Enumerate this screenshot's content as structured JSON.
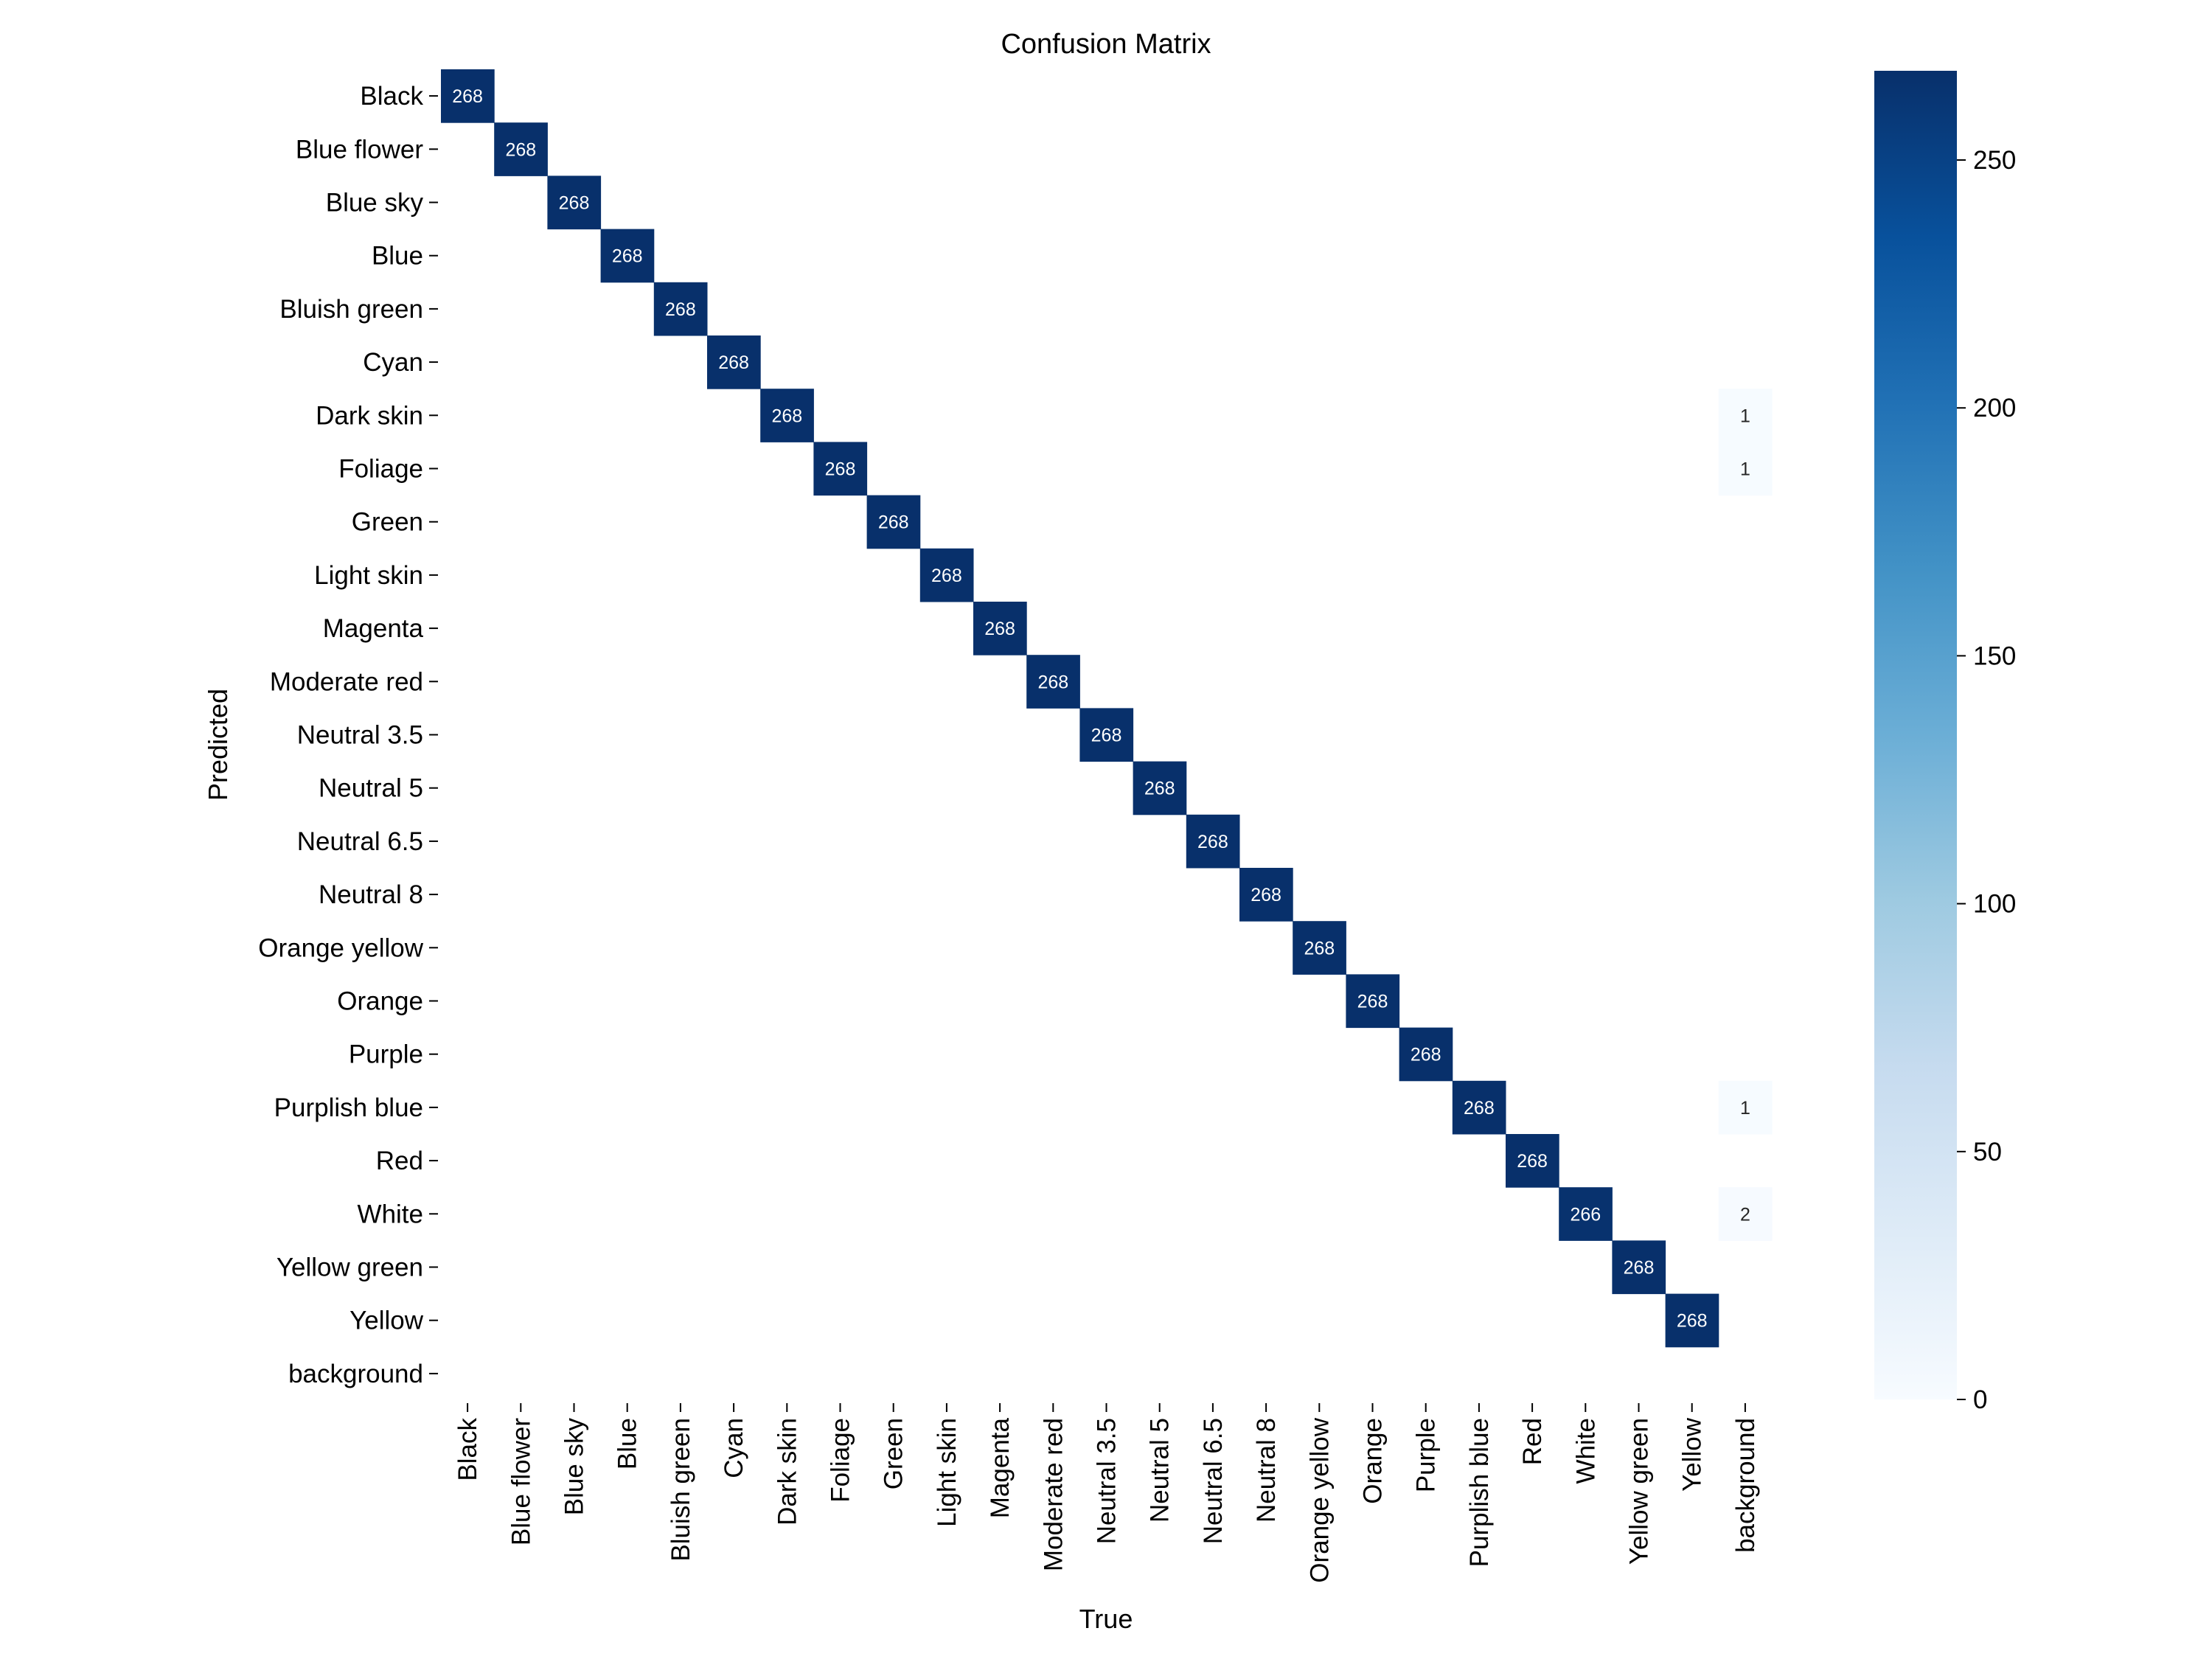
{
  "chart_data": {
    "type": "heatmap",
    "title": "Confusion Matrix",
    "xlabel": "True",
    "ylabel": "Predicted",
    "categories": [
      "Black",
      "Blue flower",
      "Blue sky",
      "Blue",
      "Bluish green",
      "Cyan",
      "Dark skin",
      "Foliage",
      "Green",
      "Light skin",
      "Magenta",
      "Moderate red",
      "Neutral 3.5",
      "Neutral 5",
      "Neutral 6.5",
      "Neutral 8",
      "Orange yellow",
      "Orange",
      "Purple",
      "Purplish blue",
      "Red",
      "White",
      "Yellow green",
      "Yellow",
      "background"
    ],
    "cells": [
      {
        "row": 0,
        "col": 0,
        "value": 268
      },
      {
        "row": 1,
        "col": 1,
        "value": 268
      },
      {
        "row": 2,
        "col": 2,
        "value": 268
      },
      {
        "row": 3,
        "col": 3,
        "value": 268
      },
      {
        "row": 4,
        "col": 4,
        "value": 268
      },
      {
        "row": 5,
        "col": 5,
        "value": 268
      },
      {
        "row": 6,
        "col": 6,
        "value": 268
      },
      {
        "row": 6,
        "col": 24,
        "value": 1
      },
      {
        "row": 7,
        "col": 7,
        "value": 268
      },
      {
        "row": 7,
        "col": 24,
        "value": 1
      },
      {
        "row": 8,
        "col": 8,
        "value": 268
      },
      {
        "row": 9,
        "col": 9,
        "value": 268
      },
      {
        "row": 10,
        "col": 10,
        "value": 268
      },
      {
        "row": 11,
        "col": 11,
        "value": 268
      },
      {
        "row": 12,
        "col": 12,
        "value": 268
      },
      {
        "row": 13,
        "col": 13,
        "value": 268
      },
      {
        "row": 14,
        "col": 14,
        "value": 268
      },
      {
        "row": 15,
        "col": 15,
        "value": 268
      },
      {
        "row": 16,
        "col": 16,
        "value": 268
      },
      {
        "row": 17,
        "col": 17,
        "value": 268
      },
      {
        "row": 18,
        "col": 18,
        "value": 268
      },
      {
        "row": 19,
        "col": 19,
        "value": 268
      },
      {
        "row": 19,
        "col": 24,
        "value": 1
      },
      {
        "row": 20,
        "col": 20,
        "value": 268
      },
      {
        "row": 21,
        "col": 21,
        "value": 266
      },
      {
        "row": 21,
        "col": 24,
        "value": 2
      },
      {
        "row": 22,
        "col": 22,
        "value": 268
      },
      {
        "row": 23,
        "col": 23,
        "value": 268
      }
    ],
    "zero_cells_hidden": true,
    "colorbar": {
      "min": 0,
      "max": 268,
      "ticks": [
        0,
        50,
        100,
        150,
        200,
        250
      ],
      "colormap": "Blues",
      "low_color": "#f7fbff",
      "high_color": "#08306b"
    },
    "grid": false,
    "legend": "colorbar-right"
  }
}
